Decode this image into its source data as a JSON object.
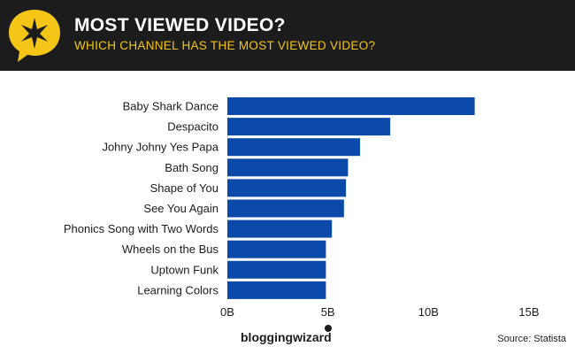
{
  "header": {
    "title": "MOST VIEWED VIDEO?",
    "subtitle": "WHICH CHANNEL HAS THE MOST VIEWED VIDEO?",
    "badge_icon": "star-speech-bubble-icon",
    "colors": {
      "background": "#1c1c1c",
      "accent": "#f5c518",
      "title": "#ffffff"
    }
  },
  "chart_data": {
    "type": "bar",
    "orientation": "horizontal",
    "categories": [
      "Baby Shark Dance",
      "Despacito",
      "Johny Johny Yes Papa",
      "Bath Song",
      "Shape of You",
      "See You Again",
      "Phonics Song with Two Words",
      "Wheels on the Bus",
      "Uptown Funk",
      "Learning Colors"
    ],
    "values": [
      12.3,
      8.1,
      6.6,
      6.0,
      5.9,
      5.8,
      5.2,
      4.9,
      4.9,
      4.9
    ],
    "xlim": [
      0,
      15
    ],
    "xticks": [
      0,
      5,
      10,
      15
    ],
    "xtick_labels": [
      "0B",
      "5B",
      "10B",
      "15B"
    ],
    "grid": false,
    "bar_color": "#0b4aa8"
  },
  "footer": {
    "brand": "bloggingwizard",
    "source": "Source: Statista"
  }
}
